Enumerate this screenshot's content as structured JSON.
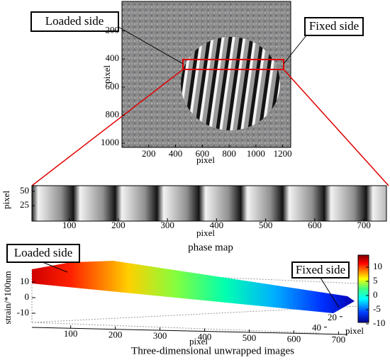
{
  "chart_data": [
    {
      "type": "image",
      "xlabel": "pixel",
      "ylabel": "pixel",
      "xlim": [
        0,
        1260
      ],
      "xticks": [
        200,
        400,
        600,
        800,
        1000,
        1200
      ],
      "ylim": [
        0,
        1030
      ],
      "yticks": [
        200,
        400,
        600,
        800,
        1000
      ],
      "annotations": [
        "Loaded side",
        "Fixed side"
      ]
    },
    {
      "type": "image",
      "xlabel": "pixel",
      "ylabel": "pixel",
      "caption": "phase map",
      "xlim": [
        24,
        746
      ],
      "xticks": [
        100,
        200,
        300,
        400,
        500,
        600,
        700
      ],
      "ylim": [
        -2,
        60
      ],
      "yticks": [
        25,
        50
      ]
    },
    {
      "type": "surface",
      "xlabel": "pixel",
      "ylabel": "pixel",
      "zlabel": "strain/*100nm",
      "caption": "Three-dimensional unwrapped images",
      "xlim": [
        10,
        720
      ],
      "xticks": [
        100,
        200,
        300,
        400,
        500,
        600,
        700
      ],
      "ylim": [
        0,
        50
      ],
      "yticks": [
        20,
        40
      ],
      "zlim": [
        -15,
        15
      ],
      "zticks": [
        10,
        0,
        -10
      ],
      "clim": [
        -11,
        14
      ],
      "cticks": [
        10,
        5,
        0,
        -5,
        -10
      ],
      "annotations": [
        "Loaded side",
        "Fixed side"
      ]
    }
  ]
}
